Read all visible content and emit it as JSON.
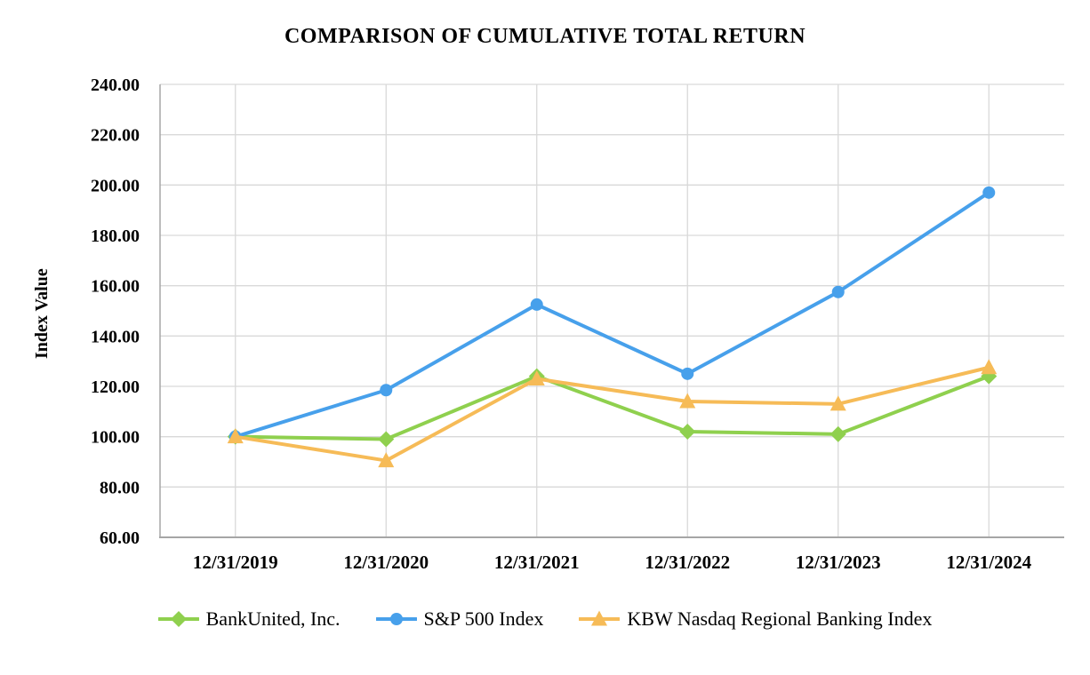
{
  "chart_data": {
    "type": "line",
    "title": "COMPARISON OF CUMULATIVE TOTAL RETURN",
    "ylabel": "Index Value",
    "xlabel": "",
    "categories": [
      "12/31/2019",
      "12/31/2020",
      "12/31/2021",
      "12/31/2022",
      "12/31/2023",
      "12/31/2024"
    ],
    "series": [
      {
        "name": "BankUnited, Inc.",
        "marker": "diamond",
        "color": "#8FD04E",
        "values": [
          100.0,
          99.0,
          124.0,
          102.0,
          101.0,
          124.0
        ]
      },
      {
        "name": "S&P 500 Index",
        "marker": "circle",
        "color": "#47A0EB",
        "values": [
          100.0,
          118.5,
          152.5,
          125.0,
          157.5,
          197.0
        ]
      },
      {
        "name": "KBW Nasdaq Regional Banking Index",
        "marker": "triangle",
        "color": "#F6BB57",
        "values": [
          100.0,
          90.5,
          123.0,
          114.0,
          113.0,
          127.5
        ]
      }
    ],
    "ylim": [
      60,
      240
    ],
    "ytick_step": 20,
    "ytick_format": "2dp",
    "grid": true,
    "legend_position": "bottom"
  },
  "colors": {
    "gridline": "#D9D9D9",
    "axis_line": "#A6A6A6",
    "text": "#000000",
    "background": "#FFFFFF"
  }
}
